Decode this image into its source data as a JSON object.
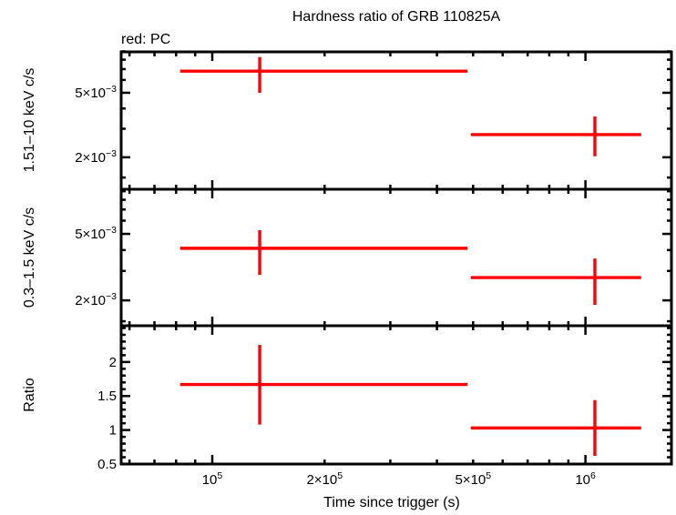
{
  "title": "Hardness ratio of GRB 110825A",
  "legend": "red: PC",
  "xlabel": "Time since trigger (s)",
  "colors": {
    "data": "#ff0000",
    "axis": "#000000",
    "background": "#ffffff"
  },
  "chart_data": {
    "type": "errorbar",
    "color": "#ff0000",
    "xscale": "log",
    "xrange": [
      57000,
      1700000
    ],
    "xticks": [
      {
        "value": 100000,
        "base": "10",
        "sup": "5",
        "long": true
      },
      {
        "value": 200000,
        "base": "2×10",
        "sup": "5",
        "long": false
      },
      {
        "value": 500000,
        "base": "5×10",
        "sup": "5",
        "long": false
      },
      {
        "value": 1000000,
        "base": "10",
        "sup": "6",
        "long": true
      }
    ],
    "xticks_minor": [
      60000,
      70000,
      80000,
      90000,
      300000,
      400000,
      600000,
      700000,
      800000,
      900000
    ],
    "panels": [
      {
        "name": "hard",
        "ylabel": "1.51–10 keV c/s",
        "yscale": "log",
        "yrange": [
          0.00127,
          0.00894
        ],
        "yticks": [
          {
            "value": 0.005,
            "base": "5×10",
            "sup": "−3"
          },
          {
            "value": 0.002,
            "base": "2×10",
            "sup": "−3"
          }
        ],
        "yticks_minor": [
          0.009,
          0.008,
          0.007,
          0.006,
          0.004,
          0.003,
          0.0015
        ],
        "points": [
          {
            "x": 134000,
            "xlo": 82000,
            "xhi": 483000,
            "y": 0.0068,
            "ylo": 0.005,
            "yhi": 0.0083
          },
          {
            "x": 1060000,
            "xlo": 493000,
            "xhi": 1410000,
            "y": 0.00276,
            "ylo": 0.00203,
            "yhi": 0.00357
          }
        ]
      },
      {
        "name": "soft",
        "ylabel": "0.3–1.5 keV c/s",
        "yscale": "log",
        "yrange": [
          0.00141,
          0.00925
        ],
        "yticks": [
          {
            "value": 0.005,
            "base": "5×10",
            "sup": "−3"
          },
          {
            "value": 0.002,
            "base": "2×10",
            "sup": "−3"
          }
        ],
        "yticks_minor": [
          0.009,
          0.008,
          0.007,
          0.006,
          0.004,
          0.003,
          0.0015
        ],
        "points": [
          {
            "x": 134000,
            "xlo": 82000,
            "xhi": 483000,
            "y": 0.0041,
            "ylo": 0.00284,
            "yhi": 0.00526
          },
          {
            "x": 1060000,
            "xlo": 493000,
            "xhi": 1410000,
            "y": 0.00274,
            "ylo": 0.00188,
            "yhi": 0.00356
          }
        ]
      },
      {
        "name": "ratio",
        "ylabel": "Ratio",
        "yscale": "linear",
        "yrange": [
          0.5,
          2.533
        ],
        "yticks": [
          {
            "value": 2,
            "base": "2",
            "sup": ""
          },
          {
            "value": 1.5,
            "base": "1.5",
            "sup": ""
          },
          {
            "value": 1,
            "base": "1",
            "sup": ""
          },
          {
            "value": 0.5,
            "base": "0.5",
            "sup": ""
          }
        ],
        "yticks_minor": [
          0.6,
          0.7,
          0.8,
          0.9,
          1.1,
          1.2,
          1.3,
          1.4,
          1.6,
          1.7,
          1.8,
          1.9,
          2.1,
          2.2,
          2.3,
          2.4,
          2.5
        ],
        "points": [
          {
            "x": 134000,
            "xlo": 82000,
            "xhi": 483000,
            "y": 1.67,
            "ylo": 1.08,
            "yhi": 2.25
          },
          {
            "x": 1060000,
            "xlo": 493000,
            "xhi": 1410000,
            "y": 1.03,
            "ylo": 0.62,
            "yhi": 1.44
          }
        ]
      }
    ]
  }
}
